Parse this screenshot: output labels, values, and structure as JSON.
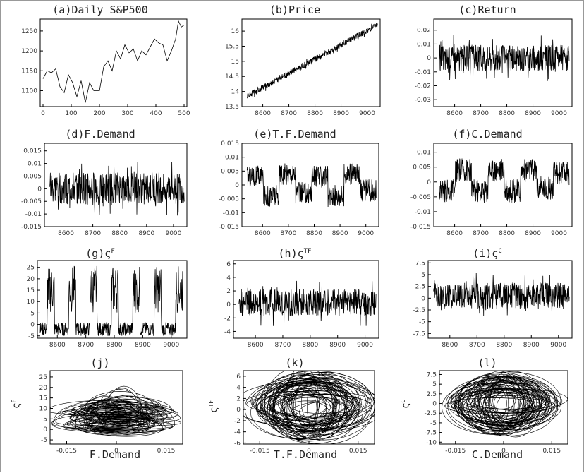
{
  "chart_data": [
    {
      "id": "a",
      "type": "line",
      "title": "(a)Daily S&P500",
      "xlim": [
        -10,
        510
      ],
      "ylim": [
        1060,
        1280
      ],
      "xticks": [
        0,
        100,
        200,
        300,
        400,
        500
      ],
      "yticks": [
        1100,
        1150,
        1200,
        1250
      ],
      "xtick_labels": [
        "0",
        "100",
        "200",
        "300",
        "400",
        "500"
      ],
      "ytick_labels": [
        "1100",
        "1150",
        "1200",
        "1250"
      ],
      "series": [
        {
          "x": [
            0,
            15,
            30,
            45,
            60,
            75,
            90,
            105,
            120,
            135,
            150,
            165,
            180,
            200,
            215,
            230,
            245,
            260,
            275,
            290,
            305,
            320,
            335,
            350,
            365,
            380,
            395,
            410,
            425,
            440,
            455,
            470,
            480,
            490,
            500
          ],
          "y": [
            1130,
            1150,
            1145,
            1155,
            1110,
            1095,
            1140,
            1120,
            1085,
            1125,
            1070,
            1120,
            1100,
            1100,
            1160,
            1175,
            1150,
            1200,
            1180,
            1215,
            1195,
            1205,
            1175,
            1200,
            1190,
            1210,
            1230,
            1220,
            1215,
            1175,
            1200,
            1230,
            1275,
            1260,
            1265
          ]
        }
      ]
    },
    {
      "id": "b",
      "type": "line",
      "title": "(b)Price",
      "xlim": [
        8520,
        9050
      ],
      "ylim": [
        13.5,
        16.4
      ],
      "xticks": [
        8600,
        8700,
        8800,
        8900,
        9000
      ],
      "yticks": [
        13.5,
        14,
        14.5,
        15,
        15.5,
        16
      ],
      "xtick_labels": [
        "8600",
        "8700",
        "8800",
        "8900",
        "9000"
      ],
      "ytick_labels": [
        "13.5",
        "14",
        "14.5",
        "15",
        "15.5",
        "16"
      ],
      "series": [
        {
          "kind": "noise",
          "x_start": 8540,
          "x_end": 9040,
          "trend": [
            13.85,
            16.2
          ],
          "amplitude": 0.12
        }
      ]
    },
    {
      "id": "c",
      "type": "line",
      "title": "(c)Return",
      "xlim": [
        8520,
        9050
      ],
      "ylim": [
        -0.035,
        0.028
      ],
      "xticks": [
        8600,
        8700,
        8800,
        8900,
        9000
      ],
      "yticks": [
        -0.03,
        -0.02,
        -0.01,
        0,
        0.01,
        0.02
      ],
      "xtick_labels": [
        "8600",
        "8700",
        "8800",
        "8900",
        "9000"
      ],
      "ytick_labels": [
        "-0.03",
        "-0.02",
        "-0.01",
        "0",
        "0.01",
        "0.02"
      ],
      "series": [
        {
          "kind": "noise",
          "x_start": 8540,
          "x_end": 9040,
          "trend": [
            0,
            0
          ],
          "amplitude": 0.012
        }
      ]
    },
    {
      "id": "d",
      "type": "line",
      "title": "(d)F.Demand",
      "xlim": [
        8520,
        9050
      ],
      "ylim": [
        -0.015,
        0.018
      ],
      "xticks": [
        8600,
        8700,
        8800,
        8900,
        9000
      ],
      "yticks": [
        -0.015,
        -0.01,
        -0.005,
        0,
        0.005,
        0.01,
        0.015
      ],
      "xtick_labels": [
        "8600",
        "8700",
        "8800",
        "8900",
        "9000"
      ],
      "ytick_labels": [
        "-0.015",
        "-0.01",
        "-0.005",
        "0",
        "0.005",
        "0.01",
        "0.015"
      ],
      "series": [
        {
          "kind": "noise",
          "x_start": 8540,
          "x_end": 9040,
          "trend": [
            0,
            0
          ],
          "amplitude": 0.008
        }
      ]
    },
    {
      "id": "e",
      "type": "line",
      "title": "(e)T.F.Demand",
      "xlim": [
        8520,
        9050
      ],
      "ylim": [
        -0.015,
        0.015
      ],
      "xticks": [
        8600,
        8700,
        8800,
        8900,
        9000
      ],
      "yticks": [
        -0.015,
        -0.01,
        -0.005,
        0,
        0.005,
        0.01,
        0.015
      ],
      "xtick_labels": [
        "8600",
        "8700",
        "8800",
        "8900",
        "9000"
      ],
      "ytick_labels": [
        "-0.015",
        "-0.01",
        "-0.005",
        "0",
        "0.005",
        "0.01",
        "0.015"
      ],
      "series": [
        {
          "kind": "regime",
          "x_start": 8540,
          "x_end": 9040,
          "levels": [
            0.003,
            -0.004,
            0.004,
            -0.003,
            0.003,
            -0.004,
            0.004,
            -0.002
          ],
          "amplitude": 0.004
        }
      ]
    },
    {
      "id": "f",
      "type": "line",
      "title": "(f)C.Demand",
      "xlim": [
        8520,
        9050
      ],
      "ylim": [
        -0.015,
        0.013
      ],
      "xticks": [
        8600,
        8700,
        8800,
        8900,
        9000
      ],
      "yticks": [
        -0.015,
        -0.01,
        -0.005,
        0,
        0.005,
        0.01
      ],
      "xtick_labels": [
        "8600",
        "8700",
        "8800",
        "8900",
        "9000"
      ],
      "ytick_labels": [
        "-0.015",
        "-0.01",
        "-0.005",
        "0",
        "0.005",
        "0.01"
      ],
      "series": [
        {
          "kind": "regime",
          "x_start": 8540,
          "x_end": 9040,
          "levels": [
            -0.003,
            0.004,
            -0.003,
            0.004,
            -0.003,
            0.004,
            -0.002,
            0.003
          ],
          "amplitude": 0.004
        }
      ]
    },
    {
      "id": "g",
      "type": "line",
      "title": "(g)ς",
      "title_sup": "F",
      "xlim": [
        8530,
        9055
      ],
      "ylim": [
        -6,
        28
      ],
      "xticks": [
        8600,
        8700,
        8800,
        8900,
        9000
      ],
      "yticks": [
        -5,
        0,
        5,
        10,
        15,
        20,
        25
      ],
      "xtick_labels": [
        "8600",
        "8700",
        "8800",
        "8900",
        "9000"
      ],
      "ytick_labels": [
        "-5",
        "0",
        "5",
        "10",
        "15",
        "20",
        "25"
      ],
      "series": [
        {
          "kind": "spikes",
          "x_start": 8540,
          "x_end": 9040,
          "base": -2,
          "amplitude": 3,
          "spike_max": 26
        }
      ]
    },
    {
      "id": "h",
      "type": "line",
      "title": "(h)ς",
      "title_sup": "TF",
      "xlim": [
        8520,
        9050
      ],
      "ylim": [
        -5,
        6.5
      ],
      "xticks": [
        8600,
        8700,
        8800,
        8900,
        9000
      ],
      "yticks": [
        -4,
        -2,
        0,
        2,
        4,
        6
      ],
      "xtick_labels": [
        "8600",
        "8700",
        "8800",
        "8900",
        "9000"
      ],
      "ytick_labels": [
        "-4",
        "-2",
        "0",
        "2",
        "4",
        "6"
      ],
      "series": [
        {
          "kind": "noise",
          "x_start": 8540,
          "x_end": 9040,
          "trend": [
            0.3,
            0.3
          ],
          "amplitude": 2.5
        }
      ]
    },
    {
      "id": "i",
      "type": "line",
      "title": "(i)ς",
      "title_sup": "C",
      "xlim": [
        8520,
        9050
      ],
      "ylim": [
        -8.5,
        8
      ],
      "xticks": [
        8600,
        8700,
        8800,
        8900,
        9000
      ],
      "yticks": [
        -7.5,
        -5,
        -2.5,
        0,
        2.5,
        5,
        7.5
      ],
      "xtick_labels": [
        "8600",
        "8700",
        "8800",
        "8900",
        "9000"
      ],
      "ytick_labels": [
        "-7.5",
        "-5",
        "-2.5",
        "0",
        "2.5",
        "5",
        "7.5"
      ],
      "series": [
        {
          "kind": "noise",
          "x_start": 8540,
          "x_end": 9040,
          "trend": [
            0.5,
            0.5
          ],
          "amplitude": 3.5
        }
      ]
    },
    {
      "id": "j",
      "type": "line",
      "title": "(j)",
      "xlabel": "F.Demand",
      "ylabel": "ς",
      "ylabel_sup": "F",
      "xlim": [
        -0.02,
        0.02
      ],
      "ylim": [
        -7,
        28
      ],
      "xticks": [
        -0.015,
        0,
        0.015
      ],
      "yticks": [
        -5,
        0,
        5,
        10,
        15,
        20,
        25
      ],
      "xtick_labels": [
        "-0.015",
        "0",
        "0.015"
      ],
      "ytick_labels": [
        "-5",
        "0",
        "5",
        "10",
        "15",
        "20",
        "25"
      ],
      "series": [
        {
          "kind": "orbits",
          "cx": 0,
          "cy": 2,
          "rx": 0.014,
          "ry": 4,
          "tall": true
        }
      ]
    },
    {
      "id": "k",
      "type": "line",
      "title": "(k)",
      "xlabel": "T.F.Demand",
      "ylabel": "ς",
      "ylabel_sup": "TF",
      "xlim": [
        -0.02,
        0.02
      ],
      "ylim": [
        -6.2,
        7
      ],
      "xticks": [
        -0.015,
        0,
        0.015
      ],
      "yticks": [
        -6,
        -4,
        -2,
        0,
        2,
        4,
        6
      ],
      "xtick_labels": [
        "-0.015",
        "0",
        "0.015"
      ],
      "ytick_labels": [
        "-6",
        "-4",
        "-2",
        "0",
        "2",
        "4",
        "6"
      ],
      "series": [
        {
          "kind": "orbits",
          "cx": 0,
          "cy": 0.5,
          "rx": 0.016,
          "ry": 5.5,
          "tall": false
        }
      ]
    },
    {
      "id": "l",
      "type": "line",
      "title": "(l)",
      "xlabel": "C.Demand",
      "ylabel": "ς",
      "ylabel_sup": "C",
      "xlim": [
        -0.02,
        0.02
      ],
      "ylim": [
        -10.5,
        8.5
      ],
      "xticks": [
        -0.015,
        0,
        0.015
      ],
      "yticks": [
        -10,
        -7.5,
        -5,
        -2.5,
        0,
        2.5,
        5,
        7.5
      ],
      "xtick_labels": [
        "-0.015",
        "0",
        "0.015"
      ],
      "ytick_labels": [
        "-10",
        "-7.5",
        "-5",
        "-2.5",
        "0",
        "2.5",
        "5",
        "7.5"
      ],
      "series": [
        {
          "kind": "orbits",
          "cx": 0,
          "cy": 0,
          "rx": 0.014,
          "ry": 6.5,
          "tall": false
        }
      ]
    }
  ]
}
